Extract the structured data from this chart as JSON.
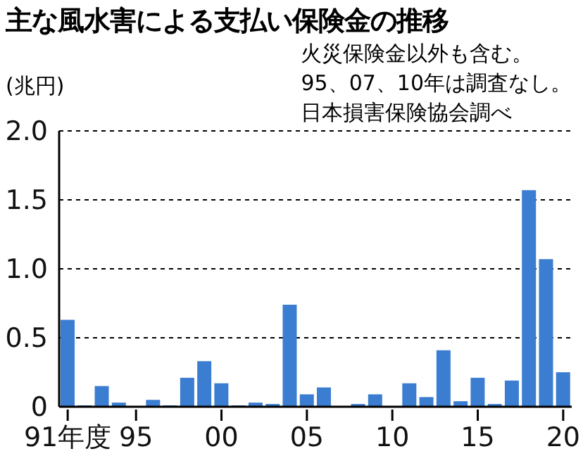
{
  "chart_data": {
    "type": "bar",
    "title": "主な風水害による支払い保険金の推移",
    "ylabel": "(兆円)",
    "annotations": [
      "火災保険金以外も含む。",
      "95、07、10年は調査なし。",
      "日本損害保険協会調べ"
    ],
    "categories": [
      "91年度",
      null,
      null,
      null,
      "95",
      null,
      null,
      null,
      null,
      "00",
      null,
      null,
      null,
      null,
      "05",
      null,
      null,
      null,
      null,
      "10",
      null,
      null,
      null,
      null,
      "15",
      null,
      null,
      null,
      null,
      "20"
    ],
    "values": [
      0.63,
      0.01,
      0.15,
      0.03,
      null,
      0.05,
      0.01,
      0.21,
      0.33,
      0.17,
      0.01,
      0.03,
      0.02,
      0.74,
      0.09,
      0.14,
      null,
      0.02,
      0.09,
      null,
      0.17,
      0.07,
      0.41,
      0.04,
      0.21,
      0.02,
      0.19,
      1.57,
      1.07,
      0.25
    ],
    "color": "#3b7dd0",
    "ylim": [
      0,
      2
    ],
    "yticks": [
      0,
      0.5,
      {
        "value": 1,
        "label": "1.0"
      },
      1.5,
      {
        "value": 2,
        "label": "2.0"
      }
    ],
    "grid": "y"
  }
}
